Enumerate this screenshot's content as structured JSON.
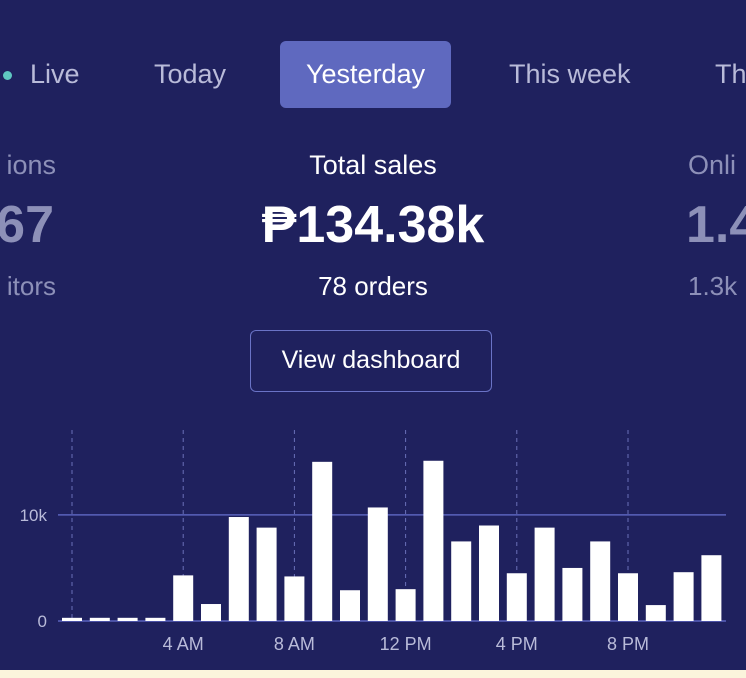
{
  "tabs": [
    {
      "label": "Live"
    },
    {
      "label": "Today"
    },
    {
      "label": "Yesterday",
      "selected": true
    },
    {
      "label": "This week"
    },
    {
      "label": "Th"
    }
  ],
  "stats": {
    "left": {
      "label": "ions",
      "value": "67",
      "sub": "itors"
    },
    "center": {
      "label": "Total sales",
      "value": "₱134.38k",
      "sub": "78 orders"
    },
    "right": {
      "label": "Onli",
      "value": "1.4",
      "sub": "1.3k"
    }
  },
  "view_dashboard_label": "View dashboard",
  "colors": {
    "background": "#1f215e",
    "selected_tab": "#5f69bf",
    "live_dot": "#5fc7c1",
    "bars": "#ffffff",
    "footer": "#fbf5dc"
  },
  "chart_data": {
    "type": "bar",
    "x": [
      "12 AM",
      "1 AM",
      "2 AM",
      "3 AM",
      "4 AM",
      "5 AM",
      "6 AM",
      "7 AM",
      "8 AM",
      "9 AM",
      "10 AM",
      "11 AM",
      "12 PM",
      "1 PM",
      "2 PM",
      "3 PM",
      "4 PM",
      "5 PM",
      "6 PM",
      "7 PM",
      "8 PM",
      "9 PM",
      "10 PM",
      "11 PM"
    ],
    "values": [
      300,
      300,
      300,
      300,
      4300,
      1600,
      9800,
      8800,
      4200,
      15000,
      2900,
      10700,
      3000,
      15100,
      7500,
      9000,
      4500,
      8800,
      5000,
      7500,
      4500,
      1500,
      4600,
      6200
    ],
    "ylim": [
      0,
      18000
    ],
    "yticks": [
      {
        "value": 0,
        "label": "0"
      },
      {
        "value": 10000,
        "label": "10k"
      }
    ],
    "xticks": [
      {
        "index": 4,
        "label": "4 AM"
      },
      {
        "index": 8,
        "label": "8 AM"
      },
      {
        "index": 12,
        "label": "12 PM"
      },
      {
        "index": 16,
        "label": "4 PM"
      },
      {
        "index": 20,
        "label": "8 PM"
      }
    ],
    "vertical_gridlines_every_hours": 4
  }
}
